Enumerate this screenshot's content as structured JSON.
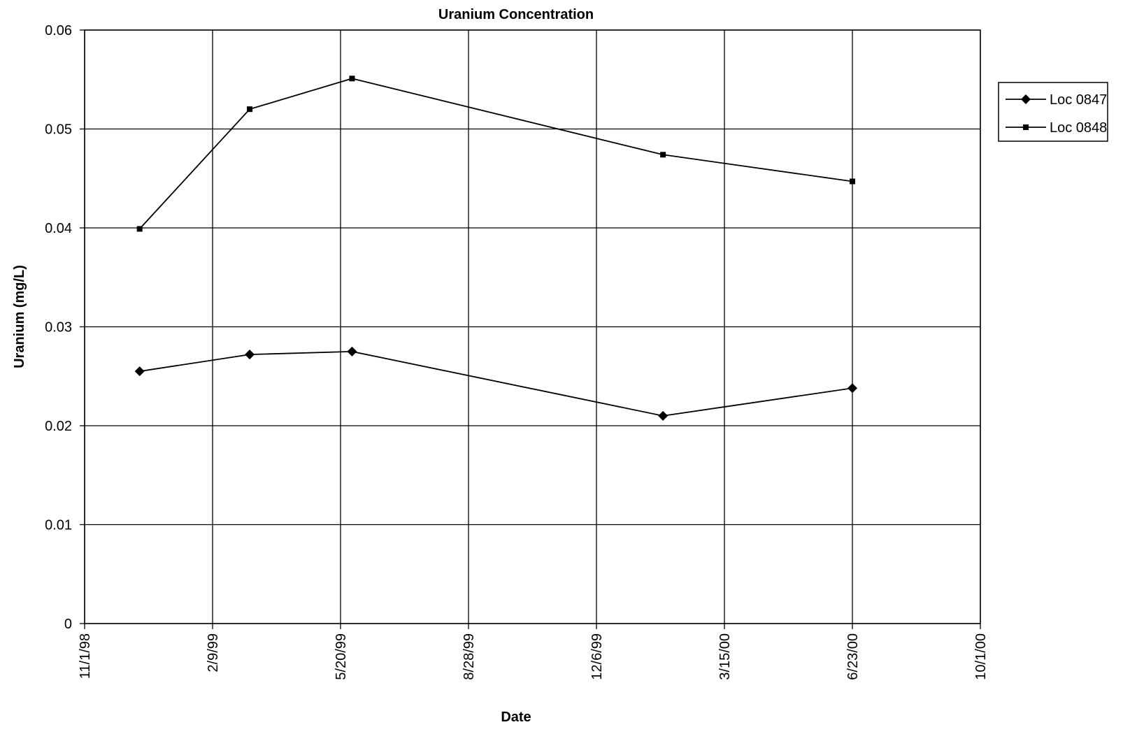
{
  "chart_data": {
    "type": "line",
    "title": "Uranium Concentration",
    "xlabel": "Date",
    "ylabel": "Uranium (mg/L)",
    "x_tick_labels": [
      "11/1/98",
      "2/9/99",
      "5/20/99",
      "8/28/99",
      "12/6/99",
      "3/15/00",
      "6/23/00",
      "10/1/00"
    ],
    "x_ticks": [
      "1998-11-01",
      "1999-02-09",
      "1999-05-20",
      "1999-08-28",
      "1999-12-06",
      "2000-03-15",
      "2000-06-23",
      "2000-10-01"
    ],
    "xlim": [
      "1998-11-01",
      "2000-10-01"
    ],
    "y_tick_labels": [
      "0",
      "0.01",
      "0.02",
      "0.03",
      "0.04",
      "0.05",
      "0.06"
    ],
    "ylim": [
      0,
      0.06
    ],
    "grid": true,
    "legend_position": "right",
    "series": [
      {
        "name": "Loc 0847",
        "marker": "diamond",
        "color": "#000000",
        "x": [
          "1998-12-14",
          "1999-03-10",
          "1999-05-29",
          "2000-01-27",
          "2000-06-23"
        ],
        "values": [
          0.0255,
          0.0272,
          0.0275,
          0.021,
          0.0238
        ]
      },
      {
        "name": "Loc 0848",
        "marker": "square",
        "color": "#000000",
        "x": [
          "1998-12-14",
          "1999-03-10",
          "1999-05-29",
          "2000-01-27",
          "2000-06-23"
        ],
        "values": [
          0.0399,
          0.052,
          0.0551,
          0.0474,
          0.0447
        ]
      }
    ]
  }
}
